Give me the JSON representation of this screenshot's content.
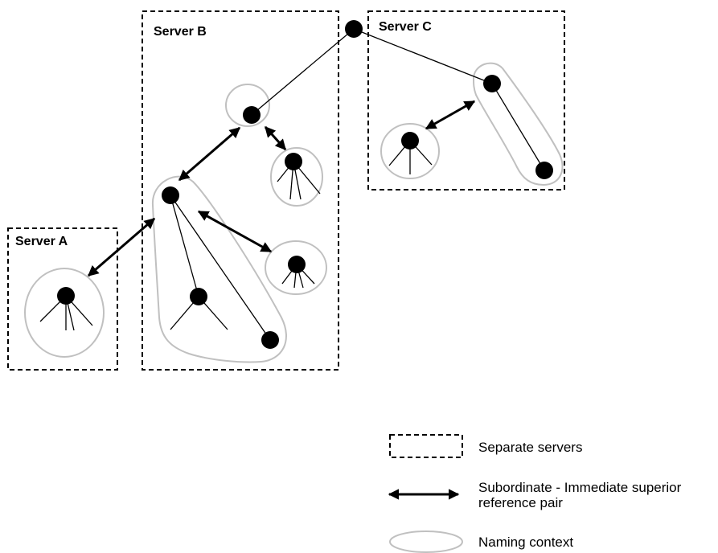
{
  "servers": {
    "a": {
      "label": "Server A"
    },
    "b": {
      "label": "Server B"
    },
    "c": {
      "label": "Server C"
    }
  },
  "legend": {
    "servers_label": "Separate servers",
    "reference_line1": "Subordinate - Immediate superior",
    "reference_line2": "reference pair",
    "naming_context_label": "Naming context"
  },
  "colors": {
    "node": "#000000",
    "naming_context": "#c0c0c0",
    "server_border": "#000000"
  }
}
